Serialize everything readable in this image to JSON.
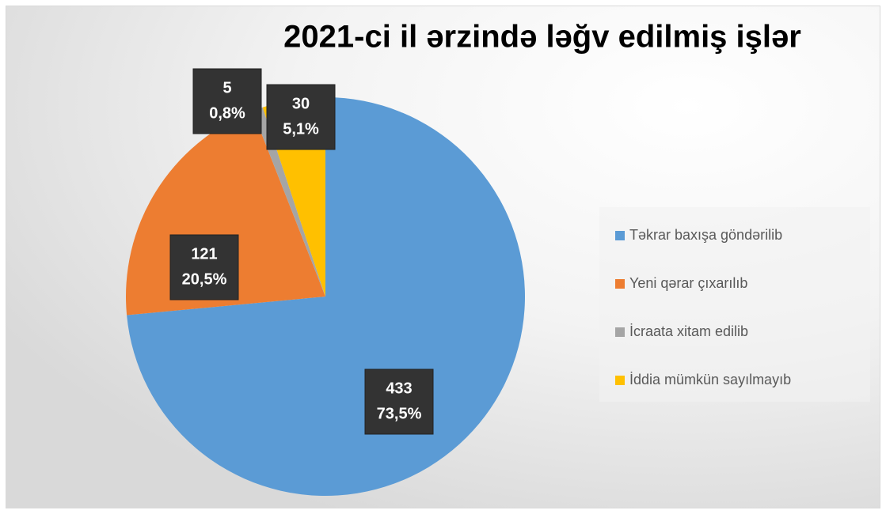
{
  "chart_data": {
    "type": "pie",
    "title": "2021-ci il ərzində ləğv edilmiş işlər",
    "categories": [
      "Təkrar baxışa göndərilib",
      "Yeni qərar çıxarılıb",
      "İcraata xitam edilib",
      "İddia mümkün sayılmayıb"
    ],
    "values": [
      433,
      121,
      5,
      30
    ],
    "percentages": [
      73.5,
      20.5,
      0.8,
      5.1
    ],
    "percentage_labels": [
      "73,5%",
      "20,5%",
      "0,8%",
      "5,1%"
    ],
    "colors": [
      "#5b9bd5",
      "#ed7d31",
      "#a5a5a5",
      "#ffc000"
    ],
    "legend": "right"
  }
}
